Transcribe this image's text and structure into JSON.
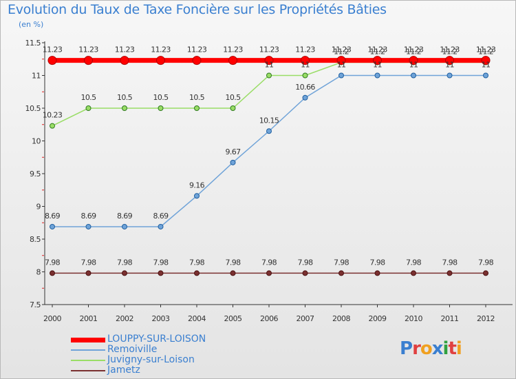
{
  "title": "Evolution du Taux de Taxe Foncière sur les Propriétés Bâties",
  "subtitle": "(en %)",
  "logo": {
    "text": "Proxiti",
    "letter_colors": [
      "#3a7fd0",
      "#e04040",
      "#f0a020",
      "#3a7fd0",
      "#30a040",
      "#e04040",
      "#f0a020"
    ]
  },
  "chart_data": {
    "type": "line",
    "x": [
      "2000",
      "2001",
      "2002",
      "2003",
      "2004",
      "2005",
      "2006",
      "2007",
      "2008",
      "2009",
      "2010",
      "2011",
      "2012"
    ],
    "ylim": [
      7.5,
      11.5
    ],
    "yticks": [
      7.5,
      8,
      8.5,
      9,
      9.5,
      10,
      10.5,
      11,
      11.5
    ],
    "grid": false,
    "legend_position": "bottom-left",
    "series": [
      {
        "name": "LOUPPY-SUR-LOISON",
        "color": "#ff0000",
        "values": [
          11.23,
          11.23,
          11.23,
          11.23,
          11.23,
          11.23,
          11.23,
          11.23,
          11.23,
          11.23,
          11.23,
          11.23,
          11.23
        ],
        "labels": [
          "11.23",
          "11.23",
          "11.23",
          "11.23",
          "11.23",
          "11.23",
          "11.23",
          "11.23",
          "11.23",
          "11.23",
          "11.23",
          "11.23",
          "11.23"
        ],
        "highlight": true
      },
      {
        "name": "Remoiville",
        "color": "#6fa3d8",
        "values": [
          8.69,
          8.69,
          8.69,
          8.69,
          9.16,
          9.67,
          10.15,
          10.66,
          11,
          11,
          11,
          11,
          11
        ],
        "labels": [
          "8.69",
          "8.69",
          "8.69",
          "8.69",
          "9.16",
          "9.67",
          "10.15",
          "10.66",
          "11",
          "11",
          "11",
          "11",
          "11"
        ]
      },
      {
        "name": "Juvigny-sur-Loison",
        "color": "#99dd66",
        "values": [
          10.23,
          10.5,
          10.5,
          10.5,
          10.5,
          10.5,
          11,
          11,
          11.2,
          11.2,
          11.2,
          11.2,
          11.2
        ],
        "labels": [
          "10.23",
          "10.5",
          "10.5",
          "10.5",
          "10.5",
          "10.5",
          "11",
          "11",
          "11.2",
          "11.2",
          "11.2",
          "11.2",
          "11.2"
        ]
      },
      {
        "name": "Jametz",
        "color": "#7a3030",
        "values": [
          7.98,
          7.98,
          7.98,
          7.98,
          7.98,
          7.98,
          7.98,
          7.98,
          7.98,
          7.98,
          7.98,
          7.98,
          7.98
        ],
        "labels": [
          "7.98",
          "7.98",
          "7.98",
          "7.98",
          "7.98",
          "7.98",
          "7.98",
          "7.98",
          "7.98",
          "7.98",
          "7.98",
          "7.98",
          "7.98"
        ]
      }
    ]
  }
}
